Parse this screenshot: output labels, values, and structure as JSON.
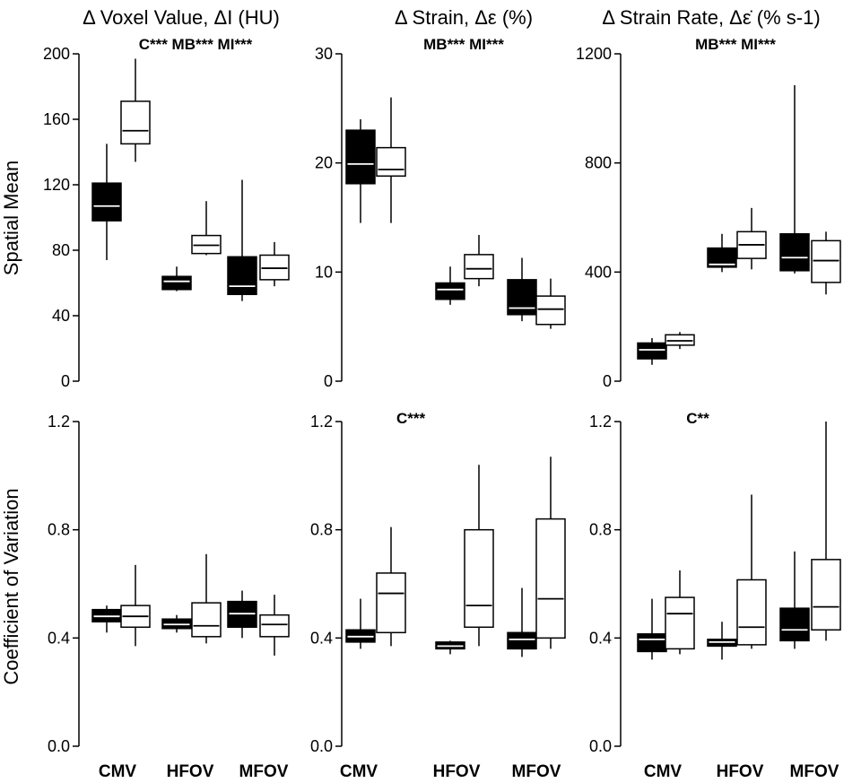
{
  "figure": {
    "col_titles": [
      "Δ Voxel Value, ΔI (HU)",
      "Δ Strain, Δε (%)",
      "Δ Strain Rate, Δε̇ (% s-1)"
    ],
    "row_labels": [
      "Spatial Mean",
      "Coefficient of Variation"
    ],
    "categories": [
      "CMV",
      "HFOV",
      "MFOV"
    ],
    "colors": {
      "filled": "#000000",
      "open": "#ffffff",
      "median_on_filled": "#ffffff",
      "median_on_open": "#000000"
    }
  },
  "chart_data": [
    {
      "type": "box",
      "panel": "spatial-mean-voxel-value",
      "title": "Δ Voxel Value, ΔI (HU)",
      "ylabel": "Spatial Mean",
      "ylim": [
        0,
        200
      ],
      "yticks": [
        0,
        40,
        80,
        120,
        160,
        200
      ],
      "tick_labels": [
        "0",
        "40",
        "80",
        "120",
        "160",
        "200"
      ],
      "annotation": "C*** MB*** MI***",
      "categories": [
        "CMV",
        "HFOV",
        "MFOV"
      ],
      "series": [
        {
          "name": "filled",
          "boxes": [
            {
              "min": 74,
              "q1": 98,
              "median": 107,
              "q3": 121,
              "max": 145
            },
            {
              "min": 55,
              "q1": 56,
              "median": 61,
              "q3": 64,
              "max": 70
            },
            {
              "min": 49,
              "q1": 53,
              "median": 58,
              "q3": 76,
              "max": 123
            }
          ]
        },
        {
          "name": "open",
          "boxes": [
            {
              "min": 134,
              "q1": 145,
              "median": 153,
              "q3": 171,
              "max": 197
            },
            {
              "min": 77,
              "q1": 78,
              "median": 83,
              "q3": 89,
              "max": 110
            },
            {
              "min": 58,
              "q1": 62,
              "median": 69,
              "q3": 77,
              "max": 85
            }
          ]
        }
      ]
    },
    {
      "type": "box",
      "panel": "spatial-mean-strain",
      "title": "Δ Strain, Δε (%)",
      "ylabel": "",
      "ylim": [
        0,
        30
      ],
      "yticks": [
        0,
        10,
        20,
        30
      ],
      "tick_labels": [
        "0",
        "10",
        "20",
        "30"
      ],
      "annotation": "MB*** MI***",
      "categories": [
        "CMV",
        "HFOV",
        "MFOV"
      ],
      "series": [
        {
          "name": "filled",
          "boxes": [
            {
              "min": 14.5,
              "q1": 18.1,
              "median": 19.9,
              "q3": 23.0,
              "max": 24.0
            },
            {
              "min": 7.0,
              "q1": 7.5,
              "median": 8.4,
              "q3": 9.0,
              "max": 10.5
            },
            {
              "min": 5.5,
              "q1": 6.1,
              "median": 6.7,
              "q3": 9.3,
              "max": 11.3
            }
          ]
        },
        {
          "name": "open",
          "boxes": [
            {
              "min": 14.5,
              "q1": 18.8,
              "median": 19.4,
              "q3": 21.4,
              "max": 26.0
            },
            {
              "min": 8.7,
              "q1": 9.4,
              "median": 10.3,
              "q3": 11.6,
              "max": 13.4
            },
            {
              "min": 4.8,
              "q1": 5.2,
              "median": 6.6,
              "q3": 7.8,
              "max": 9.4
            }
          ]
        }
      ]
    },
    {
      "type": "box",
      "panel": "spatial-mean-strain-rate",
      "title": "Δ Strain Rate, Δε̇ (% s-1)",
      "ylabel": "",
      "ylim": [
        0,
        1200
      ],
      "yticks": [
        0,
        400,
        800,
        1200
      ],
      "tick_labels": [
        "0",
        "400",
        "800",
        "1200"
      ],
      "annotation": "MB*** MI***",
      "categories": [
        "CMV",
        "HFOV",
        "MFOV"
      ],
      "series": [
        {
          "name": "filled",
          "boxes": [
            {
              "min": 60,
              "q1": 82,
              "median": 115,
              "q3": 140,
              "max": 158
            },
            {
              "min": 400,
              "q1": 418,
              "median": 428,
              "q3": 488,
              "max": 540
            },
            {
              "min": 395,
              "q1": 405,
              "median": 453,
              "q3": 540,
              "max": 1085
            }
          ]
        },
        {
          "name": "open",
          "boxes": [
            {
              "min": 118,
              "q1": 132,
              "median": 148,
              "q3": 170,
              "max": 180
            },
            {
              "min": 410,
              "q1": 450,
              "median": 500,
              "q3": 548,
              "max": 635
            },
            {
              "min": 318,
              "q1": 362,
              "median": 442,
              "q3": 515,
              "max": 548
            }
          ]
        }
      ]
    },
    {
      "type": "box",
      "panel": "cov-voxel-value",
      "title": "",
      "ylabel": "Coefficient of Variation",
      "ylim": [
        0,
        1.2
      ],
      "yticks": [
        0.0,
        0.4,
        0.8,
        1.2
      ],
      "tick_labels": [
        "0.0",
        "0.4",
        "0.8",
        "1.2"
      ],
      "annotation": "",
      "categories": [
        "CMV",
        "HFOV",
        "MFOV"
      ],
      "series": [
        {
          "name": "filled",
          "boxes": [
            {
              "min": 0.42,
              "q1": 0.46,
              "median": 0.48,
              "q3": 0.505,
              "max": 0.52
            },
            {
              "min": 0.42,
              "q1": 0.435,
              "median": 0.45,
              "q3": 0.47,
              "max": 0.485
            },
            {
              "min": 0.4,
              "q1": 0.44,
              "median": 0.49,
              "q3": 0.535,
              "max": 0.575
            }
          ]
        },
        {
          "name": "open",
          "boxes": [
            {
              "min": 0.37,
              "q1": 0.44,
              "median": 0.48,
              "q3": 0.52,
              "max": 0.67
            },
            {
              "min": 0.38,
              "q1": 0.405,
              "median": 0.445,
              "q3": 0.53,
              "max": 0.71
            },
            {
              "min": 0.335,
              "q1": 0.405,
              "median": 0.45,
              "q3": 0.485,
              "max": 0.56
            }
          ]
        }
      ]
    },
    {
      "type": "box",
      "panel": "cov-strain",
      "title": "",
      "ylabel": "",
      "ylim": [
        0,
        1.2
      ],
      "yticks": [
        0.0,
        0.4,
        0.8,
        1.2
      ],
      "tick_labels": [
        "0.0",
        "0.4",
        "0.8",
        "1.2"
      ],
      "annotation": "C***",
      "categories": [
        "CMV",
        "HFOV",
        "MFOV"
      ],
      "series": [
        {
          "name": "filled",
          "boxes": [
            {
              "min": 0.36,
              "q1": 0.385,
              "median": 0.405,
              "q3": 0.43,
              "max": 0.545
            },
            {
              "min": 0.34,
              "q1": 0.36,
              "median": 0.37,
              "q3": 0.385,
              "max": 0.39
            },
            {
              "min": 0.33,
              "q1": 0.36,
              "median": 0.395,
              "q3": 0.42,
              "max": 0.585
            }
          ]
        },
        {
          "name": "open",
          "boxes": [
            {
              "min": 0.37,
              "q1": 0.42,
              "median": 0.565,
              "q3": 0.64,
              "max": 0.81
            },
            {
              "min": 0.37,
              "q1": 0.44,
              "median": 0.52,
              "q3": 0.8,
              "max": 1.04
            },
            {
              "min": 0.36,
              "q1": 0.4,
              "median": 0.545,
              "q3": 0.84,
              "max": 1.07
            }
          ]
        }
      ]
    },
    {
      "type": "box",
      "panel": "cov-strain-rate",
      "title": "",
      "ylabel": "",
      "ylim": [
        0,
        1.2
      ],
      "yticks": [
        0.0,
        0.4,
        0.8,
        1.2
      ],
      "tick_labels": [
        "0.0",
        "0.4",
        "0.8",
        "1.2"
      ],
      "annotation": "C**",
      "categories": [
        "CMV",
        "HFOV",
        "MFOV"
      ],
      "series": [
        {
          "name": "filled",
          "boxes": [
            {
              "min": 0.32,
              "q1": 0.35,
              "median": 0.395,
              "q3": 0.415,
              "max": 0.545
            },
            {
              "min": 0.32,
              "q1": 0.37,
              "median": 0.385,
              "q3": 0.395,
              "max": 0.46
            },
            {
              "min": 0.36,
              "q1": 0.39,
              "median": 0.43,
              "q3": 0.51,
              "max": 0.72
            }
          ]
        },
        {
          "name": "open",
          "boxes": [
            {
              "min": 0.34,
              "q1": 0.36,
              "median": 0.49,
              "q3": 0.55,
              "max": 0.65
            },
            {
              "min": 0.36,
              "q1": 0.375,
              "median": 0.44,
              "q3": 0.615,
              "max": 0.93
            },
            {
              "min": 0.39,
              "q1": 0.43,
              "median": 0.515,
              "q3": 0.69,
              "max": 1.2
            }
          ]
        }
      ]
    }
  ]
}
